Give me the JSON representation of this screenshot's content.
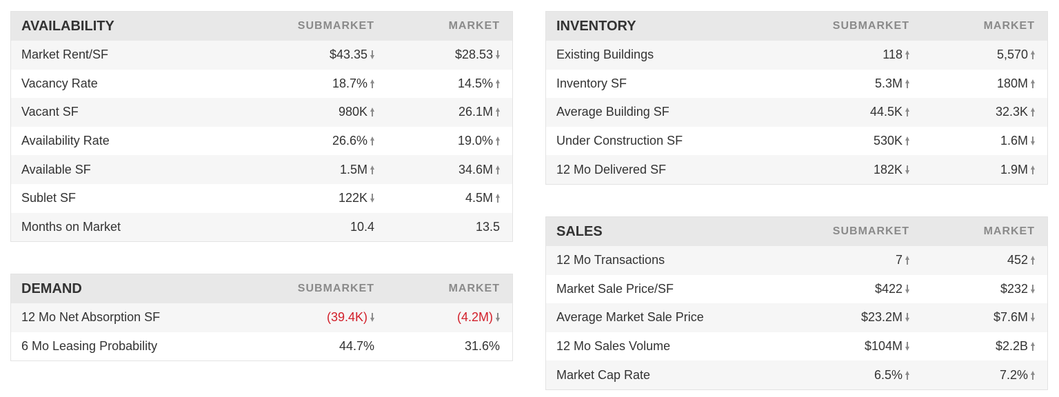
{
  "availability": {
    "title": "AVAILABILITY",
    "col_submarket": "SUBMARKET",
    "col_market": "MARKET",
    "rows": [
      {
        "label": "Market Rent/SF",
        "sub": "$43.35",
        "sub_dir": "down",
        "mkt": "$28.53",
        "mkt_dir": "down"
      },
      {
        "label": "Vacancy Rate",
        "sub": "18.7%",
        "sub_dir": "up",
        "mkt": "14.5%",
        "mkt_dir": "up"
      },
      {
        "label": "Vacant SF",
        "sub": "980K",
        "sub_dir": "up",
        "mkt": "26.1M",
        "mkt_dir": "up"
      },
      {
        "label": "Availability Rate",
        "sub": "26.6%",
        "sub_dir": "up",
        "mkt": "19.0%",
        "mkt_dir": "up"
      },
      {
        "label": "Available SF",
        "sub": "1.5M",
        "sub_dir": "up",
        "mkt": "34.6M",
        "mkt_dir": "up"
      },
      {
        "label": "Sublet SF",
        "sub": "122K",
        "sub_dir": "down",
        "mkt": "4.5M",
        "mkt_dir": "up"
      },
      {
        "label": "Months on Market",
        "sub": "10.4",
        "sub_dir": "none",
        "mkt": "13.5",
        "mkt_dir": "none"
      }
    ]
  },
  "demand": {
    "title": "DEMAND",
    "col_submarket": "SUBMARKET",
    "col_market": "MARKET",
    "rows": [
      {
        "label": "12 Mo Net Absorption SF",
        "sub": "(39.4K)",
        "sub_dir": "down",
        "sub_neg": true,
        "mkt": "(4.2M)",
        "mkt_dir": "down",
        "mkt_neg": true
      },
      {
        "label": "6 Mo Leasing Probability",
        "sub": "44.7%",
        "sub_dir": "none",
        "mkt": "31.6%",
        "mkt_dir": "none"
      }
    ]
  },
  "inventory": {
    "title": "INVENTORY",
    "col_submarket": "SUBMARKET",
    "col_market": "MARKET",
    "rows": [
      {
        "label": "Existing Buildings",
        "sub": "118",
        "sub_dir": "up",
        "mkt": "5,570",
        "mkt_dir": "up"
      },
      {
        "label": "Inventory SF",
        "sub": "5.3M",
        "sub_dir": "up",
        "mkt": "180M",
        "mkt_dir": "up"
      },
      {
        "label": "Average Building SF",
        "sub": "44.5K",
        "sub_dir": "up",
        "mkt": "32.3K",
        "mkt_dir": "up"
      },
      {
        "label": "Under Construction SF",
        "sub": "530K",
        "sub_dir": "up",
        "mkt": "1.6M",
        "mkt_dir": "down"
      },
      {
        "label": "12 Mo Delivered SF",
        "sub": "182K",
        "sub_dir": "down",
        "mkt": "1.9M",
        "mkt_dir": "up"
      }
    ]
  },
  "sales": {
    "title": "SALES",
    "col_submarket": "SUBMARKET",
    "col_market": "MARKET",
    "rows": [
      {
        "label": "12 Mo Transactions",
        "sub": "7",
        "sub_dir": "up",
        "mkt": "452",
        "mkt_dir": "up"
      },
      {
        "label": "Market Sale Price/SF",
        "sub": "$422",
        "sub_dir": "down",
        "mkt": "$232",
        "mkt_dir": "down"
      },
      {
        "label": "Average Market Sale Price",
        "sub": "$23.2M",
        "sub_dir": "down",
        "mkt": "$7.6M",
        "mkt_dir": "down"
      },
      {
        "label": "12 Mo Sales Volume",
        "sub": "$104M",
        "sub_dir": "down",
        "mkt": "$2.2B",
        "mkt_dir": "up"
      },
      {
        "label": "Market Cap Rate",
        "sub": "6.5%",
        "sub_dir": "up",
        "mkt": "7.2%",
        "mkt_dir": "up"
      }
    ]
  },
  "colors": {
    "negative": "#d21f2a",
    "header_bg": "#e8e8e8",
    "stripe_bg": "#f6f6f6",
    "arrow": "#8c8c8c"
  },
  "icons": {
    "up": "arrow-up-icon",
    "down": "arrow-down-icon"
  }
}
